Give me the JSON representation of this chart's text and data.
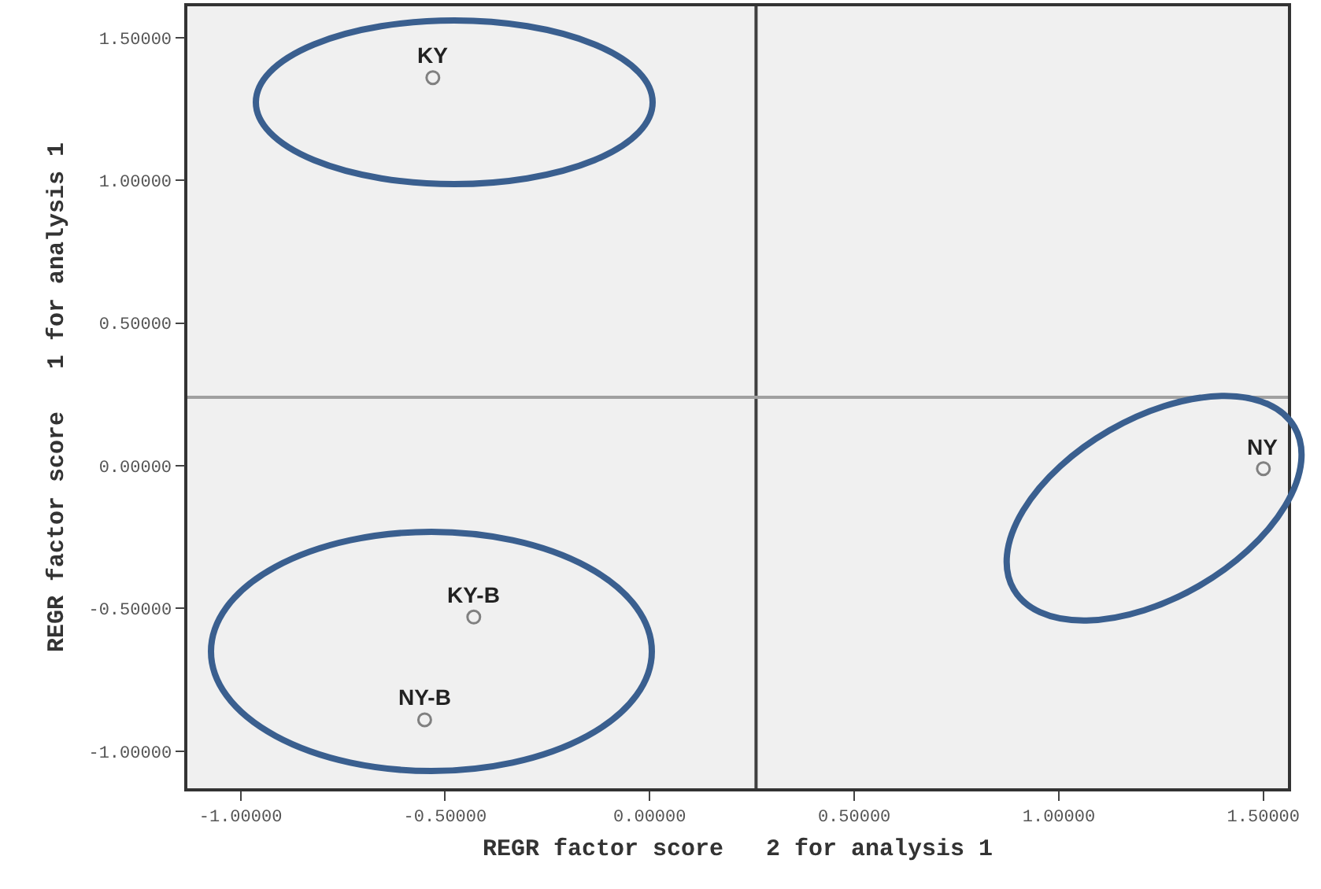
{
  "chart_data": {
    "type": "scatter",
    "xlabel": "REGR factor score   2 for analysis 1",
    "ylabel": "REGR factor score   1 for analysis 1",
    "x": [
      -0.53,
      -0.43,
      -0.55,
      1.5
    ],
    "series": [
      {
        "color": "#808080",
        "values": [
          1.36,
          -0.53,
          -0.89,
          -0.01
        ]
      }
    ],
    "annotations": [
      {
        "text": "KY",
        "x": -0.53,
        "y": 1.36
      },
      {
        "text": "KY-B",
        "x": -0.43,
        "y": -0.53
      },
      {
        "text": "NY-B",
        "x": -0.55,
        "y": -0.89
      },
      {
        "text": "NY",
        "x": 1.5,
        "y": -0.01
      }
    ],
    "xlim": [
      -1.13,
      1.56
    ],
    "ylim": [
      -1.13,
      1.61
    ],
    "xticks": [
      {
        "value": -1,
        "label": "-1.00000"
      },
      {
        "value": -0.5,
        "label": "-0.50000"
      },
      {
        "value": 0,
        "label": "0.00000"
      },
      {
        "value": 0.5,
        "label": "0.50000"
      },
      {
        "value": 1,
        "label": "1.00000"
      },
      {
        "value": 1.5,
        "label": "1.50000"
      }
    ],
    "yticks": [
      {
        "value": -1,
        "label": "-1.00000"
      },
      {
        "value": -0.5,
        "label": "-0.50000"
      },
      {
        "value": 0,
        "label": "0.00000"
      },
      {
        "value": 0.5,
        "label": "0.50000"
      },
      {
        "value": 1,
        "label": "1.00000"
      },
      {
        "value": 1.5,
        "label": "1.50000"
      }
    ],
    "ref_lines": [
      {
        "axis": "x",
        "value": 0.26,
        "color": "#404040"
      },
      {
        "axis": "y",
        "value": 0.24,
        "color": "#a0a0a0"
      }
    ],
    "marker": "circle"
  }
}
